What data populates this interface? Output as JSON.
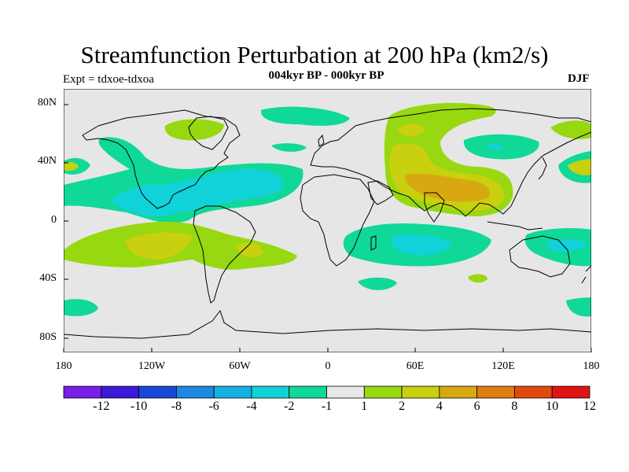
{
  "title": "Streamfunction Perturbation at 200 hPa (km2/s)",
  "subtitle": "004kyr BP - 000kyr BP",
  "experiment": "Expt = tdxoe-tdxoa",
  "season": "DJF",
  "latitude_labels": [
    "80N",
    "40N",
    "0",
    "40S",
    "80S"
  ],
  "longitude_labels": [
    "180",
    "120W",
    "60W",
    "0",
    "60E",
    "120E",
    "180"
  ],
  "colorbar": {
    "labels": [
      "-12",
      "-10",
      "-8",
      "-6",
      "-4",
      "-2",
      "-1",
      "1",
      "2",
      "4",
      "6",
      "8",
      "10",
      "12"
    ],
    "colors": [
      "#7a1ee8",
      "#3d18d8",
      "#1a48d6",
      "#1e88e0",
      "#14b0e0",
      "#10d2d8",
      "#10d898",
      "#e8e8e8",
      "#98d810",
      "#c8d010",
      "#d8a810",
      "#e07c10",
      "#e04a10",
      "#e01414"
    ]
  },
  "ocean_color": "#e6e6e6"
}
